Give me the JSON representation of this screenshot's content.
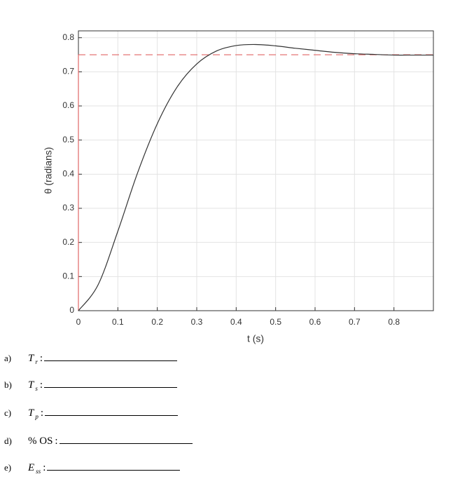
{
  "chart_data": {
    "type": "line",
    "x": [
      0,
      0.05,
      0.1,
      0.15,
      0.2,
      0.25,
      0.3,
      0.35,
      0.4,
      0.45,
      0.5,
      0.55,
      0.6,
      0.65,
      0.7,
      0.75,
      0.8,
      0.85,
      0.9
    ],
    "series": [
      {
        "color": "#333333",
        "values": [
          0,
          0.076,
          0.233,
          0.404,
          0.548,
          0.655,
          0.723,
          0.761,
          0.777,
          0.78,
          0.776,
          0.769,
          0.763,
          0.757,
          0.753,
          0.751,
          0.749,
          0.749,
          0.749
        ]
      }
    ],
    "reference": {
      "color": "#e06666",
      "x": [
        0,
        0,
        0.9
      ],
      "values": [
        0,
        0.75,
        0.75
      ]
    },
    "xlabel": "t (s)",
    "ylabel": "θ (radians)",
    "xlim": [
      0,
      0.9
    ],
    "ylim": [
      0,
      0.82
    ],
    "xticks": [
      0,
      0.1,
      0.2,
      0.3,
      0.4,
      0.5,
      0.6,
      0.7,
      0.8
    ],
    "yticks": [
      0,
      0.1,
      0.2,
      0.3,
      0.4,
      0.5,
      0.6,
      0.7,
      0.8
    ],
    "grid": true
  },
  "questions": [
    {
      "letter": "a)",
      "label": "T",
      "sub": "r",
      "suffix": ":"
    },
    {
      "letter": "b)",
      "label": "T",
      "sub": "s",
      "suffix": ":"
    },
    {
      "letter": "c)",
      "label": "T",
      "sub": "p",
      "suffix": ":"
    },
    {
      "letter": "d)",
      "label": "% OS",
      "sub": "",
      "suffix": ":"
    },
    {
      "letter": "e)",
      "label": "E",
      "sub": "ss",
      "suffix": ":"
    }
  ]
}
